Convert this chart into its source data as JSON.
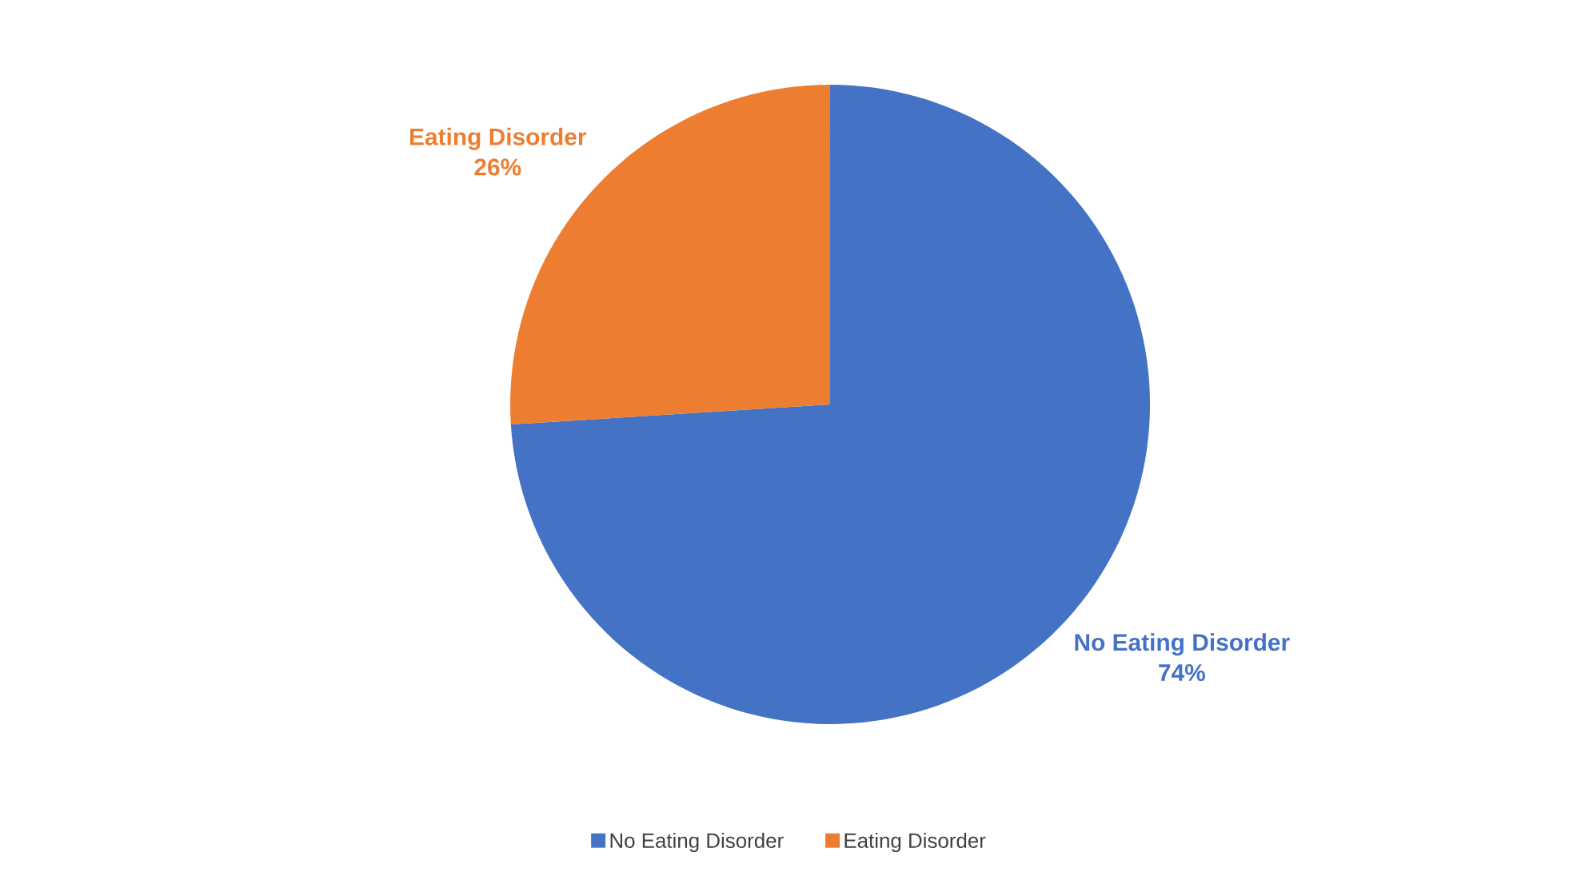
{
  "chart_data": {
    "type": "pie",
    "categories": [
      "No Eating Disorder",
      "Eating Disorder"
    ],
    "values": [
      74,
      26
    ],
    "colors": [
      "#4472c4",
      "#ed7d31"
    ],
    "value_labels": [
      "74%",
      "26%"
    ],
    "legend": "bottom"
  }
}
